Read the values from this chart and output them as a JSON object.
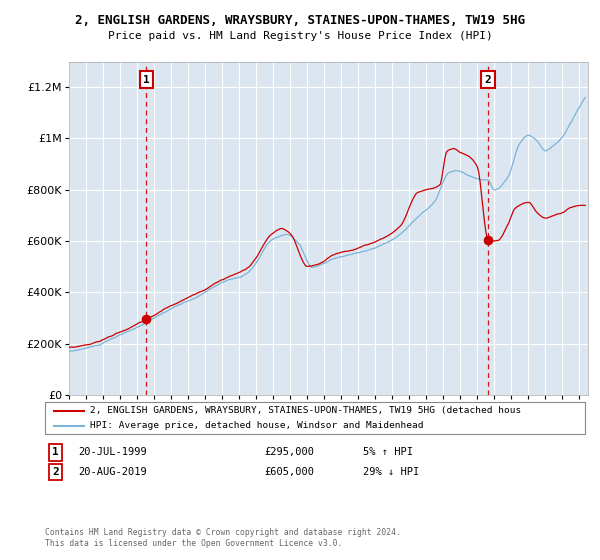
{
  "title_line1": "2, ENGLISH GARDENS, WRAYSBURY, STAINES-UPON-THAMES, TW19 5HG",
  "title_line2": "Price paid vs. HM Land Registry's House Price Index (HPI)",
  "bg_color": "#dce6f0",
  "plot_bg_color": "#dce6f0",
  "red_line_label": "2, ENGLISH GARDENS, WRAYSBURY, STAINES-UPON-THAMES, TW19 5HG (detached hous",
  "blue_line_label": "HPI: Average price, detached house, Windsor and Maidenhead",
  "marker1_date": "20-JUL-1999",
  "marker1_price": 295000,
  "marker1_pct": "5% ↑ HPI",
  "marker2_date": "20-AUG-2019",
  "marker2_price": 605000,
  "marker2_pct": "29% ↓ HPI",
  "marker1_x": 1999.55,
  "marker2_x": 2019.63,
  "footer": "Contains HM Land Registry data © Crown copyright and database right 2024.\nThis data is licensed under the Open Government Licence v3.0.",
  "ylim": [
    0,
    1300000
  ],
  "xlim": [
    1995.0,
    2025.5
  ]
}
